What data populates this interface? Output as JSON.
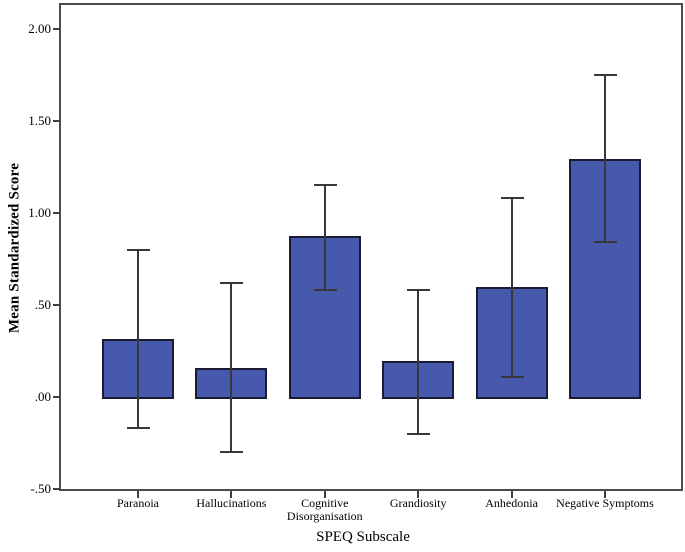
{
  "chart_data": {
    "type": "bar",
    "title": "",
    "xlabel": "SPEQ Subscale",
    "ylabel": "Mean Standardized Score",
    "categories": [
      "Paranoia",
      "Hallucinations",
      "Cognitive Disorganisation",
      "Grandiosity",
      "Anhedonia",
      "Negative Symptoms"
    ],
    "values": [
      0.31,
      0.15,
      0.87,
      0.19,
      0.59,
      1.29
    ],
    "error_bars": {
      "high": [
        0.8,
        0.62,
        1.15,
        0.58,
        1.08,
        1.75
      ],
      "low": [
        -0.17,
        -0.3,
        0.58,
        -0.2,
        0.11,
        0.84
      ]
    },
    "ylim": [
      -0.5,
      2.14
    ],
    "yticks": [
      {
        "value": 2.0,
        "label": "2.00"
      },
      {
        "value": 1.5,
        "label": "1.50"
      },
      {
        "value": 1.0,
        "label": "1.00"
      },
      {
        "value": 0.5,
        "label": ".50"
      },
      {
        "value": 0.0,
        "label": ".00"
      },
      {
        "value": -0.5,
        "label": "-.50"
      }
    ],
    "grid": false,
    "legend": null,
    "colors": {
      "bar_fill": "#4659ad",
      "bar_border": "#1b1b33",
      "error_bar": "#38383a",
      "frame": "#4b4b4d",
      "text": "#000000",
      "background": "#ffffff"
    }
  }
}
